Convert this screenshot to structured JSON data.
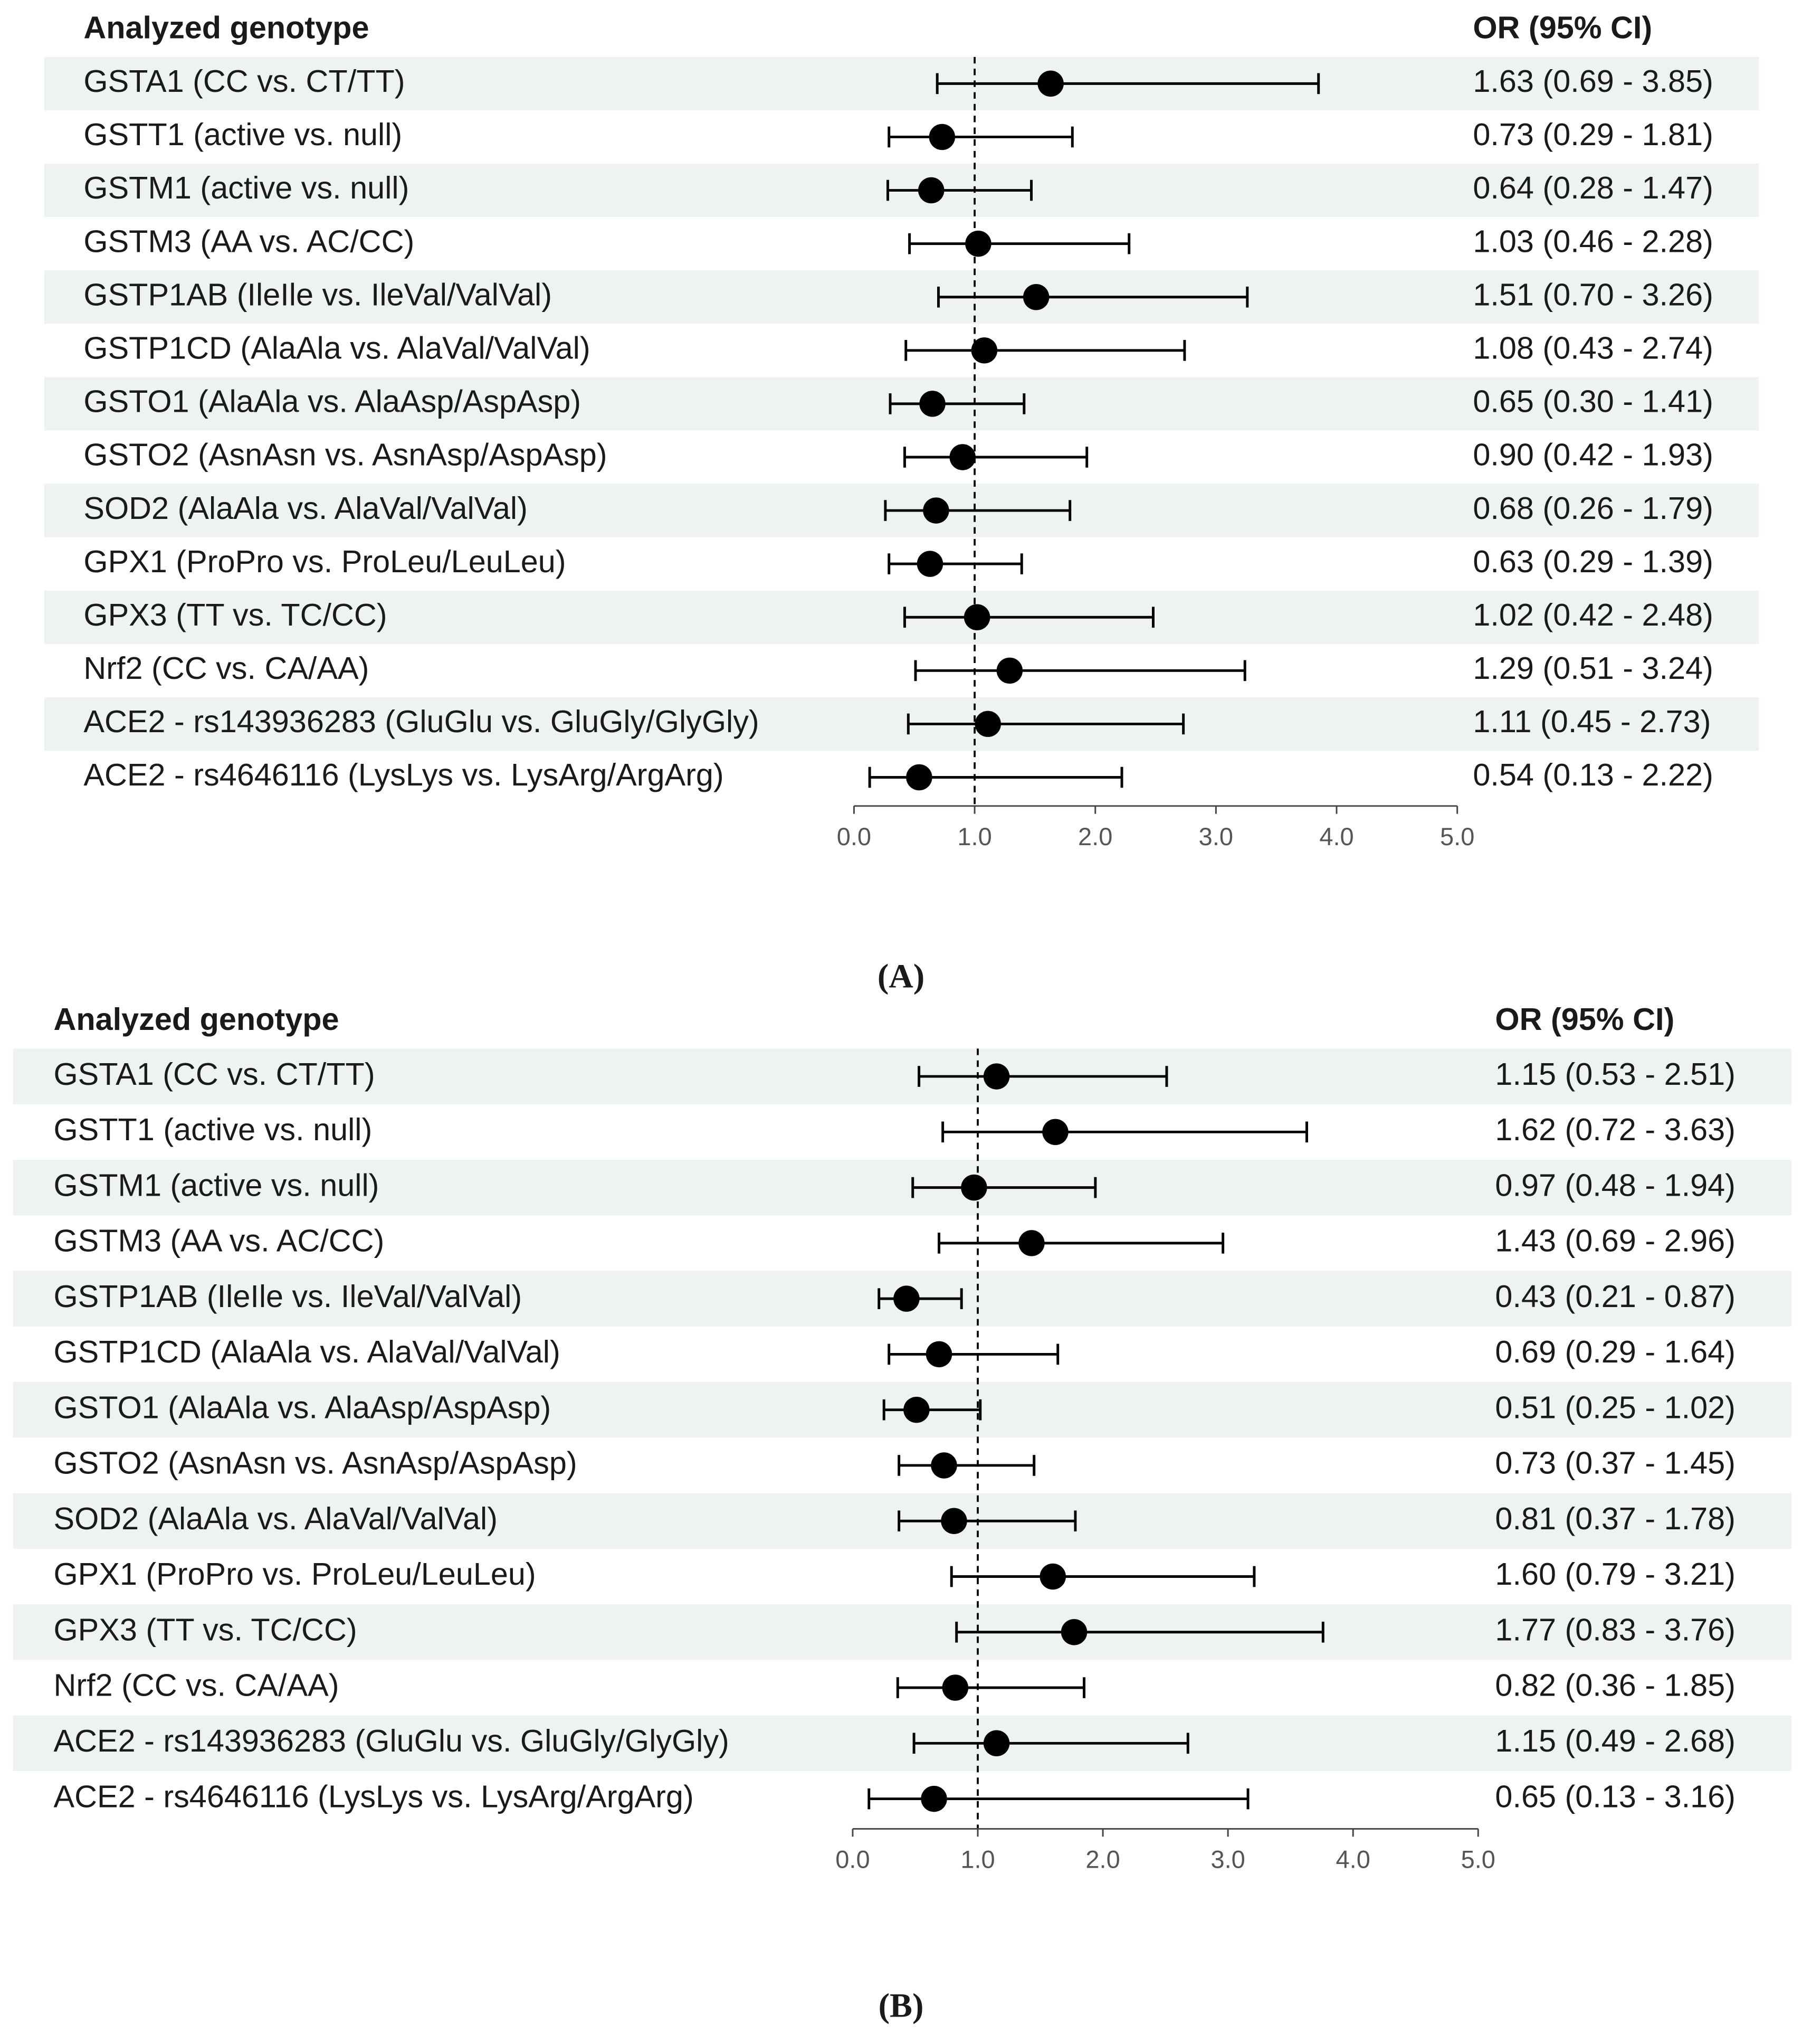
{
  "chart_data": [
    {
      "type": "forest",
      "caption": "(A)",
      "label_header": "Analyzed genotype",
      "value_header": "OR (95% CI)",
      "categories": [
        "GSTA1 (CC vs. CT/TT)",
        "GSTT1 (active vs. null)",
        "GSTM1 (active vs. null)",
        "GSTM3 (AA vs. AC/CC)",
        "GSTP1AB (IleIle vs. IleVal/ValVal)",
        "GSTP1CD (AlaAla vs. AlaVal/ValVal)",
        "GSTO1 (AlaAla vs. AlaAsp/AspAsp)",
        "GSTO2 (AsnAsn vs. AsnAsp/AspAsp)",
        "SOD2 (AlaAla vs. AlaVal/ValVal)",
        "GPX1 (ProPro vs. ProLeu/LeuLeu)",
        "GPX3 (TT vs. TC/CC)",
        "Nrf2 (CC vs. CA/AA)",
        "ACE2 - rs143936283 (GluGlu vs. GluGly/GlyGly)",
        "ACE2 - rs4646116 (LysLys vs. LysArg/ArgArg)"
      ],
      "values": [
        1.63,
        0.73,
        0.64,
        1.03,
        1.51,
        1.08,
        0.65,
        0.9,
        0.68,
        0.63,
        1.02,
        1.29,
        1.11,
        0.54
      ],
      "ci_lower": [
        0.69,
        0.29,
        0.28,
        0.46,
        0.7,
        0.43,
        0.3,
        0.42,
        0.26,
        0.29,
        0.42,
        0.51,
        0.45,
        0.13
      ],
      "ci_upper": [
        3.85,
        1.81,
        1.47,
        2.28,
        3.26,
        2.74,
        1.41,
        1.93,
        1.79,
        1.39,
        2.48,
        3.24,
        2.73,
        2.22
      ],
      "value_labels": [
        "1.63 (0.69 - 3.85)",
        "0.73 (0.29 - 1.81)",
        "0.64 (0.28 - 1.47)",
        "1.03 (0.46 - 2.28)",
        "1.51 (0.70 - 3.26)",
        "1.08 (0.43 - 2.74)",
        "0.65 (0.30 - 1.41)",
        "0.90 (0.42 - 1.93)",
        "0.68 (0.26 - 1.79)",
        "0.63 (0.29 - 1.39)",
        "1.02 (0.42 - 2.48)",
        "1.29 (0.51 - 3.24)",
        "1.11 (0.45 - 2.73)",
        "0.54 (0.13 - 2.22)"
      ],
      "color": "#000000",
      "reference_line": 1,
      "xlim": [
        0,
        5
      ],
      "xticks": [
        {
          "value": 0,
          "label": "0.0"
        },
        {
          "value": 1,
          "label": "1.0"
        },
        {
          "value": 2,
          "label": "2.0"
        },
        {
          "value": 3,
          "label": "3.0"
        },
        {
          "value": 4,
          "label": "4.0"
        },
        {
          "value": 5,
          "label": "5.0"
        }
      ]
    },
    {
      "type": "forest",
      "caption": "(B)",
      "label_header": "Analyzed genotype",
      "value_header": "OR (95% CI)",
      "categories": [
        "GSTA1 (CC vs. CT/TT)",
        "GSTT1 (active vs. null)",
        "GSTM1 (active vs. null)",
        "GSTM3 (AA vs. AC/CC)",
        "GSTP1AB (IleIle vs. IleVal/ValVal)",
        "GSTP1CD (AlaAla vs. AlaVal/ValVal)",
        "GSTO1 (AlaAla vs. AlaAsp/AspAsp)",
        "GSTO2 (AsnAsn vs. AsnAsp/AspAsp)",
        "SOD2 (AlaAla vs. AlaVal/ValVal)",
        "GPX1 (ProPro vs. ProLeu/LeuLeu)",
        "GPX3 (TT vs. TC/CC)",
        "Nrf2 (CC vs. CA/AA)",
        "ACE2 - rs143936283 (GluGlu vs. GluGly/GlyGly)",
        "ACE2 - rs4646116 (LysLys vs. LysArg/ArgArg)"
      ],
      "values": [
        1.15,
        1.62,
        0.97,
        1.43,
        0.43,
        0.69,
        0.51,
        0.73,
        0.81,
        1.6,
        1.77,
        0.82,
        1.15,
        0.65
      ],
      "ci_lower": [
        0.53,
        0.72,
        0.48,
        0.69,
        0.21,
        0.29,
        0.25,
        0.37,
        0.37,
        0.79,
        0.83,
        0.36,
        0.49,
        0.13
      ],
      "ci_upper": [
        2.51,
        3.63,
        1.94,
        2.96,
        0.87,
        1.64,
        1.02,
        1.45,
        1.78,
        3.21,
        3.76,
        1.85,
        2.68,
        3.16
      ],
      "value_labels": [
        "1.15 (0.53 - 2.51)",
        "1.62 (0.72 - 3.63)",
        "0.97 (0.48 - 1.94)",
        "1.43 (0.69 - 2.96)",
        "0.43 (0.21 - 0.87)",
        "0.69 (0.29 - 1.64)",
        "0.51 (0.25 - 1.02)",
        "0.73 (0.37 - 1.45)",
        "0.81 (0.37 - 1.78)",
        "1.60 (0.79 - 3.21)",
        "1.77 (0.83 - 3.76)",
        "0.82 (0.36 - 1.85)",
        "1.15 (0.49 - 2.68)",
        "0.65 (0.13 - 3.16)"
      ],
      "color": "#000000",
      "reference_line": 1,
      "xlim": [
        0,
        5
      ],
      "xticks": [
        {
          "value": 0,
          "label": "0.0"
        },
        {
          "value": 1,
          "label": "1.0"
        },
        {
          "value": 2,
          "label": "2.0"
        },
        {
          "value": 3,
          "label": "3.0"
        },
        {
          "value": 4,
          "label": "4.0"
        },
        {
          "value": 5,
          "label": "5.0"
        }
      ]
    }
  ]
}
